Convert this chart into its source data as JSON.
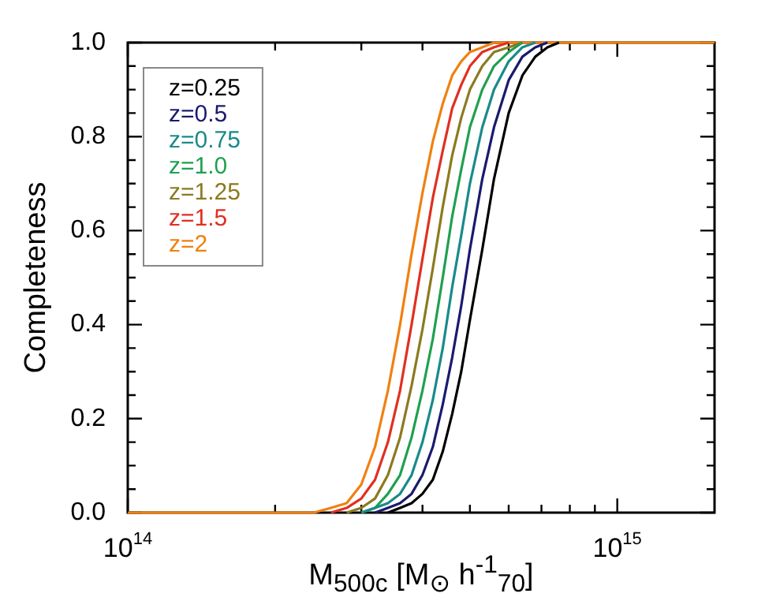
{
  "chart_data": {
    "type": "line",
    "xlabel": "M$_{500c}$ [M$_{⊙}$ h$^{-1}$$_{70}$]",
    "ylabel": "Completeness",
    "log": "x",
    "legend": "top left",
    "x": [
      100000000000000.0,
      200000000000000.0,
      220000000000000.0,
      240000000000000.0,
      260000000000000.0,
      280000000000000.0,
      300000000000000.0,
      320000000000000.0,
      340000000000000.0,
      360000000000000.0,
      380000000000000.0,
      400000000000000.0,
      420000000000000.0,
      440000000000000.0,
      460000000000000.0,
      480000000000000.0,
      500000000000000.0,
      530000000000000.0,
      560000000000000.0,
      600000000000000.0,
      640000000000000.0,
      680000000000000.0,
      720000000000000.0,
      760000000000000.0,
      800000000000000.0,
      900000000000000.0,
      1000000000000000.0,
      1580000000000000.0
    ],
    "xlim": [
      100000000000000.0,
      1580000000000000.0
    ],
    "xticks": [
      {
        "value": 100000000000000.0,
        "label": "10$^{14}$"
      },
      {
        "value": 200000000000000.0,
        "label": null
      },
      {
        "value": 300000000000000.0,
        "label": null
      },
      {
        "value": 400000000000000.0,
        "label": null
      },
      {
        "value": 500000000000000.0,
        "label": null
      },
      {
        "value": 600000000000000.0,
        "label": null
      },
      {
        "value": 700000000000000.0,
        "label": null
      },
      {
        "value": 800000000000000.0,
        "label": null
      },
      {
        "value": 900000000000000.0,
        "label": null
      },
      {
        "value": 1000000000000000.0,
        "label": "10$^{15}$"
      }
    ],
    "ylim": [
      0,
      1
    ],
    "yticks": [
      {
        "value": 0,
        "label": "0.0"
      },
      {
        "value": 0.05,
        "label": null
      },
      {
        "value": 0.1,
        "label": null
      },
      {
        "value": 0.15,
        "label": null
      },
      {
        "value": 0.2,
        "label": "0.2"
      },
      {
        "value": 0.25,
        "label": null
      },
      {
        "value": 0.3,
        "label": null
      },
      {
        "value": 0.35,
        "label": null
      },
      {
        "value": 0.4,
        "label": "0.4"
      },
      {
        "value": 0.45,
        "label": null
      },
      {
        "value": 0.5,
        "label": null
      },
      {
        "value": 0.55,
        "label": null
      },
      {
        "value": 0.6,
        "label": "0.6"
      },
      {
        "value": 0.65,
        "label": null
      },
      {
        "value": 0.7,
        "label": null
      },
      {
        "value": 0.75,
        "label": null
      },
      {
        "value": 0.8,
        "label": "0.8"
      },
      {
        "value": 0.85,
        "label": null
      },
      {
        "value": 0.9,
        "label": null
      },
      {
        "value": 0.95,
        "label": null
      },
      {
        "value": 1,
        "label": "1.0"
      }
    ],
    "series": [
      {
        "name": "z=0.25",
        "color": "#000000",
        "values": [
          null,
          null,
          null,
          null,
          null,
          null,
          null,
          null,
          0,
          0.01,
          0.02,
          0.04,
          0.07,
          0.13,
          0.21,
          0.3,
          0.41,
          0.56,
          0.71,
          0.85,
          0.93,
          0.97,
          0.99,
          1,
          null,
          null,
          null,
          null
        ]
      },
      {
        "name": "z=0.5",
        "color": "#1a1a6e",
        "values": [
          null,
          null,
          null,
          null,
          null,
          null,
          null,
          0,
          0.01,
          0.02,
          0.04,
          0.08,
          0.14,
          0.23,
          0.33,
          0.44,
          0.56,
          0.71,
          0.82,
          0.92,
          0.97,
          0.99,
          1,
          null,
          null,
          null,
          null,
          null
        ]
      },
      {
        "name": "z=0.75",
        "color": "#1a8a8a",
        "values": [
          null,
          null,
          null,
          null,
          null,
          null,
          0,
          0.01,
          0.02,
          0.04,
          0.08,
          0.15,
          0.24,
          0.35,
          0.48,
          0.59,
          0.7,
          0.82,
          0.9,
          0.96,
          0.99,
          1,
          null,
          null,
          null,
          null,
          null,
          null
        ]
      },
      {
        "name": "z=1.0",
        "color": "#20a050",
        "values": [
          null,
          null,
          null,
          null,
          null,
          null,
          0,
          0.01,
          0.04,
          0.08,
          0.16,
          0.26,
          0.37,
          0.5,
          0.63,
          0.73,
          0.82,
          0.9,
          0.95,
          0.98,
          1,
          null,
          null,
          null,
          null,
          null,
          null,
          null
        ]
      },
      {
        "name": "z=1.25",
        "color": "#8b7a20",
        "values": [
          null,
          null,
          null,
          null,
          null,
          0,
          0.01,
          0.03,
          0.08,
          0.16,
          0.27,
          0.39,
          0.52,
          0.65,
          0.76,
          0.84,
          0.9,
          0.95,
          0.98,
          0.99,
          1,
          null,
          null,
          null,
          null,
          null,
          null,
          null
        ]
      },
      {
        "name": "z=1.5",
        "color": "#e03020",
        "values": [
          null,
          null,
          null,
          null,
          0,
          0.01,
          0.03,
          0.07,
          0.15,
          0.26,
          0.4,
          0.54,
          0.67,
          0.77,
          0.86,
          0.91,
          0.95,
          0.98,
          0.99,
          1,
          null,
          null,
          null,
          null,
          null,
          null,
          null,
          null
        ]
      },
      {
        "name": "z=2",
        "color": "#f08010",
        "values": [
          0,
          0,
          0,
          0,
          0.01,
          0.02,
          0.06,
          0.14,
          0.26,
          0.4,
          0.55,
          0.68,
          0.79,
          0.87,
          0.93,
          0.96,
          0.98,
          0.99,
          1,
          1,
          1,
          1,
          1,
          1,
          1,
          1,
          1,
          1
        ]
      }
    ]
  }
}
